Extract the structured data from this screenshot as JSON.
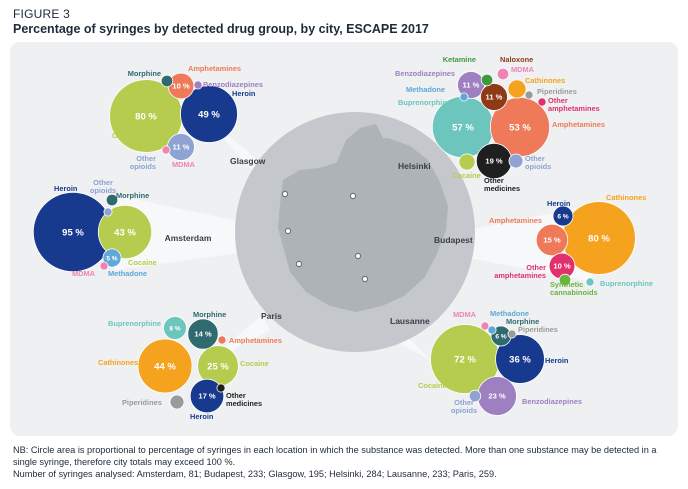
{
  "figure_label": "FIGURE 3",
  "title": "Percentage of syringes by detected drug group, by city, ESCAPE 2017",
  "footnotes": {
    "nb": "NB: Circle area is proportional to percentage of syringes in each location in which the substance was detected. More than one substance may be detected in a single syringe, therefore city totals may exceed 100 %.",
    "n": "Number of syringes analysed: Amsterdam, 81; Budapest, 233; Glasgow, 195; Helsinki, 284; Lausanne, 233; Paris, 259."
  },
  "colors": {
    "Cocaine": "#b5cc4e",
    "Heroin": "#173a8f",
    "Amphetamines": "#ef7a5a",
    "Benzodiazepines": "#9e7fc0",
    "Other opioids": "#8ea3d1",
    "MDMA": "#ee84b3",
    "Morphine": "#2f6b6e",
    "Methadone": "#5fa8d8",
    "Cathinones": "#f5a31f",
    "Buprenorphine": "#6cc6bd",
    "Piperidines": "#9a9a9a",
    "Ketamine": "#3f9a3c",
    "Naloxone": "#8e3a17",
    "Other amphetamines": "#e1306c",
    "Other medicines": "#1f1f1f",
    "Synthetic cannabinoids": "#6bb43b",
    "background": "#eef0f2",
    "map": "#c4c8cc"
  },
  "chart_data": {
    "type": "bubble",
    "unit": "%",
    "cities": [
      {
        "city": "Glasgow",
        "substances": [
          {
            "name": "Cocaine",
            "label": "Cocaine",
            "value": 80,
            "shown": "80 %"
          },
          {
            "name": "Heroin",
            "label": "Heroin",
            "value": 49,
            "shown": "49 %"
          },
          {
            "name": "Amphetamines",
            "label": "Amphetamines",
            "value": 10,
            "shown": "10 %"
          },
          {
            "name": "Other opioids",
            "label": "Other opioids",
            "value": 11,
            "shown": "11 %"
          },
          {
            "name": "Morphine",
            "label": "Morphine",
            "value": 2
          },
          {
            "name": "Benzodiazepines",
            "label": "Benzodiazepines",
            "value": 1
          },
          {
            "name": "MDMA",
            "label": "MDMA",
            "value": 1
          }
        ]
      },
      {
        "city": "Helsinki",
        "substances": [
          {
            "name": "Amphetamines",
            "label": "Amphetamines",
            "value": 53,
            "shown": "53 %"
          },
          {
            "name": "Buprenorphine",
            "label": "Buprenorphine",
            "value": 57,
            "shown": "57 %"
          },
          {
            "name": "Other medicines",
            "label": "Other medicines",
            "value": 19,
            "shown": "19 %"
          },
          {
            "name": "Benzodiazepines",
            "label": "Benzodiazepines",
            "value": 11,
            "shown": "11 %"
          },
          {
            "name": "Naloxone",
            "label": "Naloxone",
            "value": 11,
            "shown": "11 %"
          },
          {
            "name": "Cathinones",
            "label": "Cathinones",
            "value": 5
          },
          {
            "name": "Cocaine",
            "label": "Cocaine",
            "value": 4
          },
          {
            "name": "Other opioids",
            "label": "Other opioids",
            "value": 3
          },
          {
            "name": "MDMA",
            "label": "MDMA",
            "value": 2
          },
          {
            "name": "Ketamine",
            "label": "Ketamine",
            "value": 2
          },
          {
            "name": "Methadone",
            "label": "Methadone",
            "value": 1
          },
          {
            "name": "Piperidines",
            "label": "Piperidines",
            "value": 1
          },
          {
            "name": "Other amphetamines",
            "label": "Other amphetamines",
            "value": 1
          }
        ]
      },
      {
        "city": "Amsterdam",
        "substances": [
          {
            "name": "Heroin",
            "label": "Heroin",
            "value": 95,
            "shown": "95 %"
          },
          {
            "name": "Cocaine",
            "label": "Cocaine",
            "value": 43,
            "shown": "43 %"
          },
          {
            "name": "Methadone",
            "label": "Methadone",
            "value": 5,
            "shown": "5 %"
          },
          {
            "name": "Morphine",
            "label": "Morphine",
            "value": 2
          },
          {
            "name": "Other opioids",
            "label": "Other opioids",
            "value": 1
          },
          {
            "name": "MDMA",
            "label": "MDMA",
            "value": 1
          }
        ]
      },
      {
        "city": "Budapest",
        "substances": [
          {
            "name": "Cathinones",
            "label": "Cathinones",
            "value": 80,
            "shown": "80 %"
          },
          {
            "name": "Amphetamines",
            "label": "Amphetamines",
            "value": 15,
            "shown": "15 %"
          },
          {
            "name": "Other amphetamines",
            "label": "Other amphetamines",
            "value": 10,
            "shown": "10 %"
          },
          {
            "name": "Heroin",
            "label": "Heroin",
            "value": 6,
            "shown": "6 %"
          },
          {
            "name": "Synthetic cannabinoids",
            "label": "Synthetic cannabinoids",
            "value": 2
          },
          {
            "name": "Buprenorphine",
            "label": "Buprenorphine",
            "value": 1
          }
        ]
      },
      {
        "city": "Paris",
        "substances": [
          {
            "name": "Cathinones",
            "label": "Cathinones",
            "value": 44,
            "shown": "44 %"
          },
          {
            "name": "Cocaine",
            "label": "Cocaine",
            "value": 25,
            "shown": "25 %"
          },
          {
            "name": "Heroin",
            "label": "Heroin",
            "value": 17,
            "shown": "17 %"
          },
          {
            "name": "Morphine",
            "label": "Morphine",
            "value": 14,
            "shown": "14 %"
          },
          {
            "name": "Buprenorphine",
            "label": "Buprenorphine",
            "value": 8,
            "shown": "8 %"
          },
          {
            "name": "Piperidines",
            "label": "Piperidines",
            "value": 3
          },
          {
            "name": "Amphetamines",
            "label": "Amphetamines",
            "value": 1
          },
          {
            "name": "Other medicines",
            "label": "Other medicines",
            "value": 1
          }
        ]
      },
      {
        "city": "Lausanne",
        "substances": [
          {
            "name": "Cocaine",
            "label": "Cocaine",
            "value": 72,
            "shown": "72 %"
          },
          {
            "name": "Heroin",
            "label": "Heroin",
            "value": 36,
            "shown": "36 %"
          },
          {
            "name": "Benzodiazepines",
            "label": "Benzodiazepines",
            "value": 23,
            "shown": "23 %"
          },
          {
            "name": "Morphine",
            "label": "Morphine",
            "value": 6,
            "shown": "6 %"
          },
          {
            "name": "Other opioids",
            "label": "Other opioids",
            "value": 2
          },
          {
            "name": "MDMA",
            "label": "MDMA",
            "value": 1
          },
          {
            "name": "Methadone",
            "label": "Methadone",
            "value": 1
          },
          {
            "name": "Piperidines",
            "label": "Piperidines",
            "value": 1
          }
        ]
      }
    ]
  }
}
